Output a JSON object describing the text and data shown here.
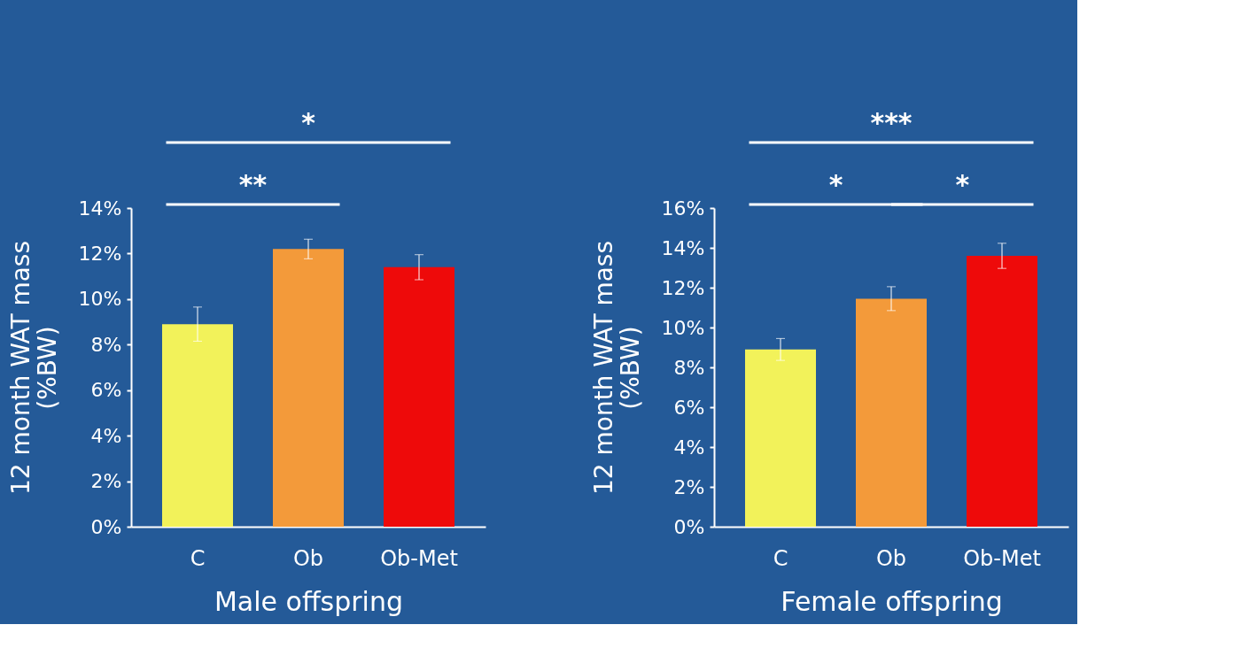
{
  "chart_data": [
    {
      "type": "bar",
      "categories": [
        "C",
        "Ob",
        "Ob-Met"
      ],
      "values": [
        8.9,
        12.2,
        11.4
      ],
      "errors": [
        0.75,
        0.43,
        0.55
      ],
      "colors": [
        "#f2f25a",
        "#f39a3a",
        "#ee0a0a"
      ],
      "ylabel": "12 month WAT mass\n(%BW)",
      "xlabel": "Male offspring",
      "ylim": [
        0,
        14
      ],
      "yticks": [
        {
          "value": 0,
          "label": "0%"
        },
        {
          "value": 2,
          "label": "2%"
        },
        {
          "value": 4,
          "label": "4%"
        },
        {
          "value": 6,
          "label": "6%"
        },
        {
          "value": 8,
          "label": "8%"
        },
        {
          "value": 10,
          "label": "10%"
        },
        {
          "value": 12,
          "label": "12%"
        },
        {
          "value": 14,
          "label": "14%"
        }
      ],
      "grid": false,
      "annotations": [
        "*",
        "**"
      ]
    },
    {
      "type": "bar",
      "categories": [
        "C",
        "Ob",
        "Ob-Met"
      ],
      "values": [
        8.9,
        11.45,
        13.6
      ],
      "errors": [
        0.55,
        0.6,
        0.63
      ],
      "colors": [
        "#f2f25a",
        "#f39a3a",
        "#ee0a0a"
      ],
      "ylabel": "12 month WAT mass\n(%BW)",
      "xlabel": "Female offspring",
      "ylim": [
        0,
        16
      ],
      "yticks": [
        {
          "value": 0,
          "label": "0%"
        },
        {
          "value": 2,
          "label": "2%"
        },
        {
          "value": 4,
          "label": "4%"
        },
        {
          "value": 6,
          "label": "6%"
        },
        {
          "value": 8,
          "label": "8%"
        },
        {
          "value": 10,
          "label": "10%"
        },
        {
          "value": 12,
          "label": "12%"
        },
        {
          "value": 14,
          "label": "14%"
        },
        {
          "value": 16,
          "label": "16%"
        }
      ],
      "grid": false,
      "annotations": [
        "***",
        "*",
        "*"
      ]
    }
  ]
}
